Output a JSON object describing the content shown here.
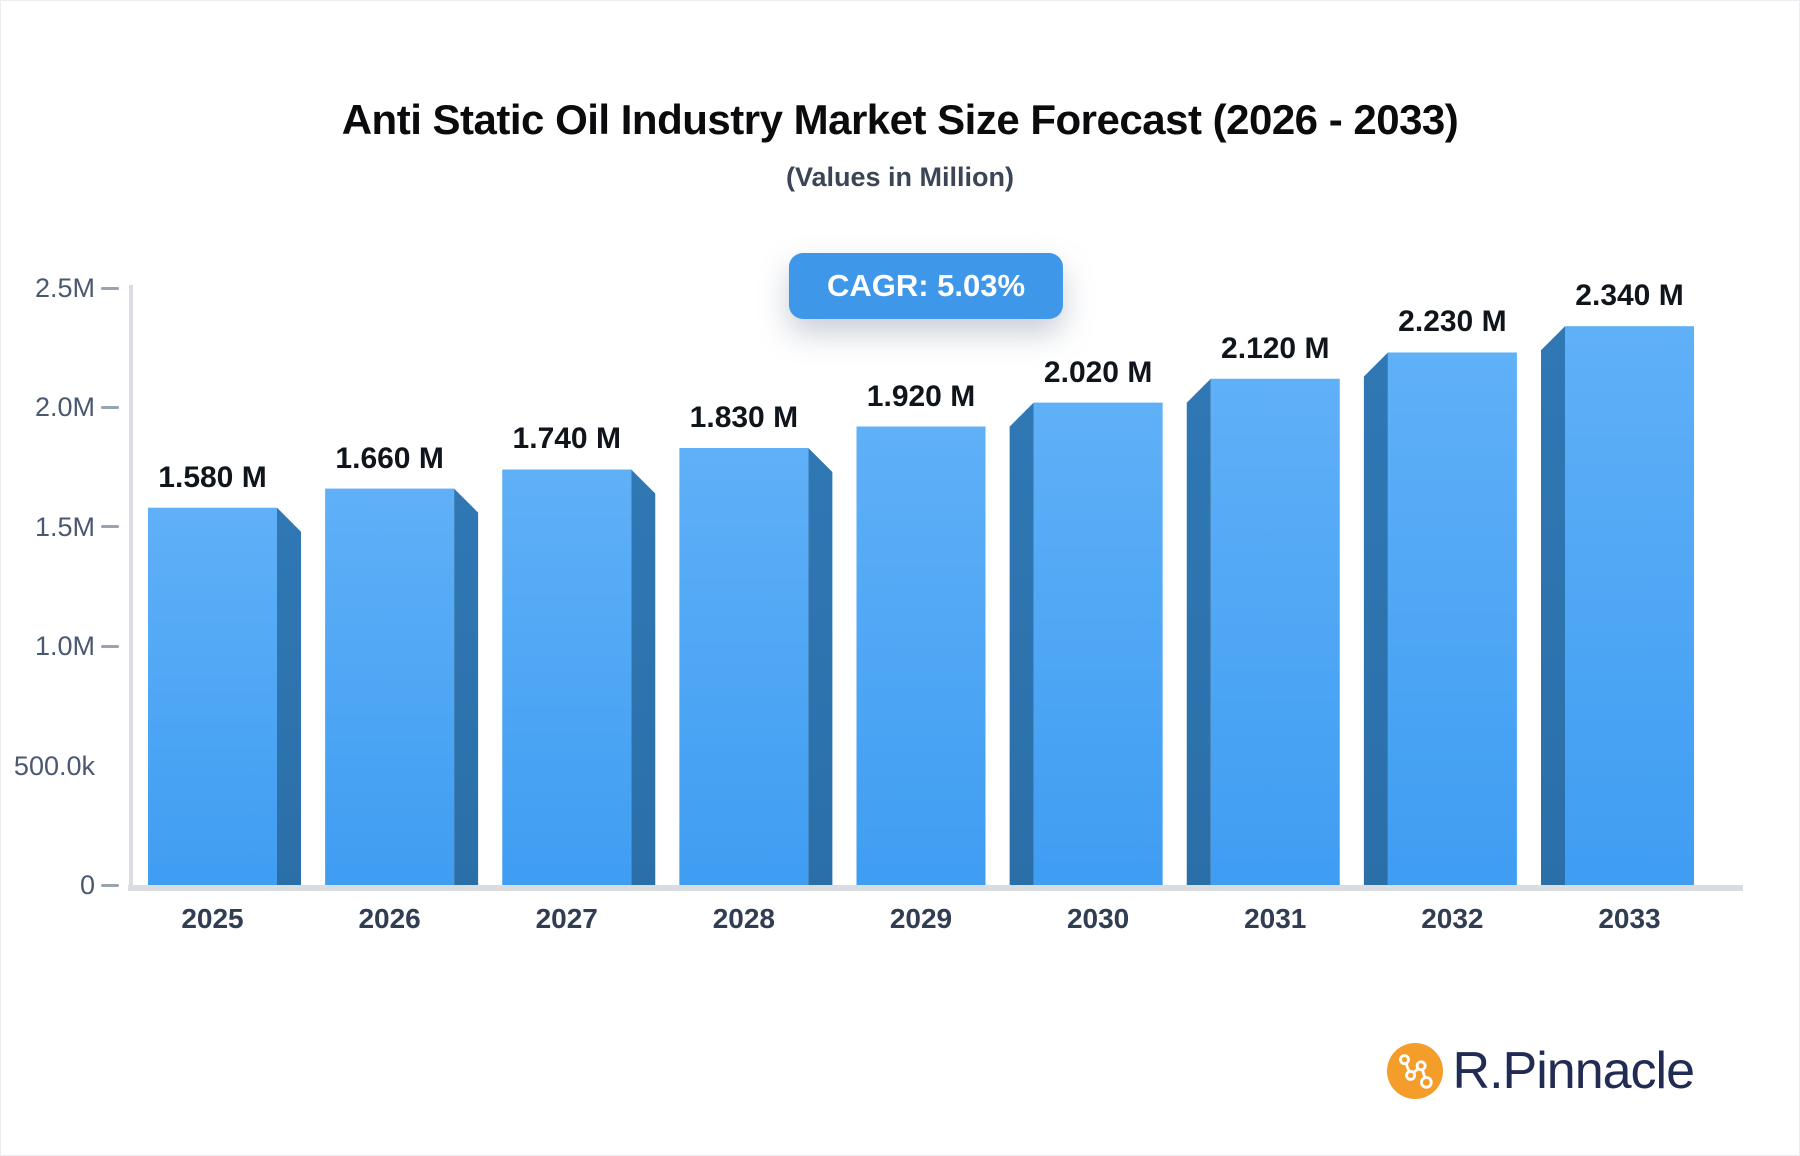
{
  "title": "Anti Static Oil Industry Market Size Forecast (2026 - 2033)",
  "subtitle": "(Values in Million)",
  "badge": {
    "label": "CAGR: 5.03%",
    "bg": "#3e97e9"
  },
  "chart_data": {
    "type": "bar",
    "title": "Anti Static Oil Industry Market Size Forecast (2026 - 2033)",
    "subtitle": "(Values in Million)",
    "unit": "Million",
    "cagr": "5.03%",
    "categories": [
      "2025",
      "2026",
      "2027",
      "2028",
      "2029",
      "2030",
      "2031",
      "2032",
      "2033"
    ],
    "values": [
      1.58,
      1.66,
      1.74,
      1.83,
      1.92,
      2.02,
      2.12,
      2.23,
      2.34
    ],
    "value_labels": [
      "1.580 M",
      "1.660 M",
      "1.740 M",
      "1.830 M",
      "1.920 M",
      "2.020 M",
      "2.120 M",
      "2.230 M",
      "2.340 M"
    ],
    "ylim": [
      0,
      2.5
    ],
    "yticks": [
      {
        "label": "2.5M",
        "value": 2.5,
        "tick": true
      },
      {
        "label": "2.0M",
        "value": 2.0,
        "tick": true
      },
      {
        "label": "1.5M",
        "value": 1.5,
        "tick": true
      },
      {
        "label": "1.0M",
        "value": 1.0,
        "tick": true
      },
      {
        "label": "500.0k",
        "value": 0.5,
        "tick": false
      },
      {
        "label": "0",
        "value": 0.0,
        "tick": true
      }
    ],
    "grid": false,
    "legend": false,
    "style": {
      "effect": "3d-perspective-toward-center",
      "bar_face_top": "#5fb0f7",
      "bar_face_bottom": "#3f9df2",
      "bar_side_top": "#2f78b5",
      "bar_side_bottom": "#2b6fa9",
      "axis_color": "#d9dce1",
      "tick_color": "#9aa3b0"
    }
  },
  "branding": {
    "logo_text": "R.Pinnacle",
    "logo_icon": "network-nodes-icon",
    "logo_circle_color": "#f59d2b",
    "logo_text_color": "#222b54"
  }
}
